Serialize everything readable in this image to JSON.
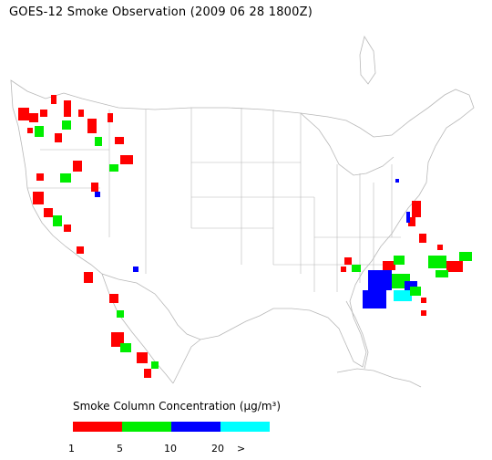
{
  "title": "GOES-12 Smoke Observation (2009 06 28  1800Z)",
  "legend": {
    "title": "Smoke Column Concentration (μg/m³)",
    "segments": [
      {
        "label": "1–5",
        "color": "#ff0000"
      },
      {
        "label": "5–10",
        "color": "#00ee00"
      },
      {
        "label": "10–20",
        "color": "#0000ff"
      },
      {
        "label": "20 >",
        "color": "#00ffff"
      }
    ],
    "ticks": [
      "1",
      "5",
      "10",
      "20",
      ">"
    ]
  },
  "map": {
    "region": "Continental United States",
    "basemap_color": "#b8b8b8",
    "smoke_regions": [
      "Pacific Northwest",
      "California",
      "Baja California",
      "Southeast US / Atlantic coast",
      "Mid-Atlantic coast"
    ]
  }
}
